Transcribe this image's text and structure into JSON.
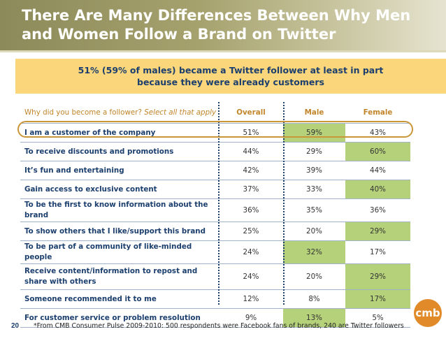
{
  "slide": {
    "title": "There Are Many Differences Between Why Men and Women Follow a Brand on Twitter",
    "callout": "51% (59% of males) became a Twitter  follower at least in part because they were already customers",
    "page_number": "20",
    "footnote": "*From CMB Consumer Pulse 2009-2010:  500 respondents were Facebook fans of brands, 240 are Twitter followers",
    "logo_text": "cmb"
  },
  "table": {
    "question": "Why did you become a follower?",
    "question_note": "Select all that apply",
    "columns": [
      "Overall",
      "Male",
      "Female"
    ],
    "rows": [
      {
        "label": "I am a customer of the company",
        "overall": "51%",
        "male": "59%",
        "female": "43%"
      },
      {
        "label": "To receive discounts and promotions",
        "overall": "44%",
        "male": "29%",
        "female": "60%"
      },
      {
        "label": "It’s fun and entertaining",
        "overall": "42%",
        "male": "39%",
        "female": "44%"
      },
      {
        "label": "Gain access to exclusive content",
        "overall": "37%",
        "male": "33%",
        "female": "40%"
      },
      {
        "label": "To be the first to know information about the brand",
        "overall": "36%",
        "male": "35%",
        "female": "36%"
      },
      {
        "label": "To show others that I like/support this brand",
        "overall": "25%",
        "male": "20%",
        "female": "29%"
      },
      {
        "label": "To be part of a community of like-minded people",
        "overall": "24%",
        "male": "32%",
        "female": "17%"
      },
      {
        "label": "Receive content/information to repost and share with others",
        "overall": "24%",
        "male": "20%",
        "female": "29%"
      },
      {
        "label": "Someone recommended it to me",
        "overall": "12%",
        "male": "8%",
        "female": "17%"
      },
      {
        "label": "For customer service or problem resolution",
        "overall": "9%",
        "male": "13%",
        "female": "5%"
      }
    ]
  },
  "colors": {
    "highlight": "#b5d27a",
    "callout_bg": "#fbd67a",
    "accent_text": "#c2852a",
    "label_text": "#1c3f6e"
  }
}
